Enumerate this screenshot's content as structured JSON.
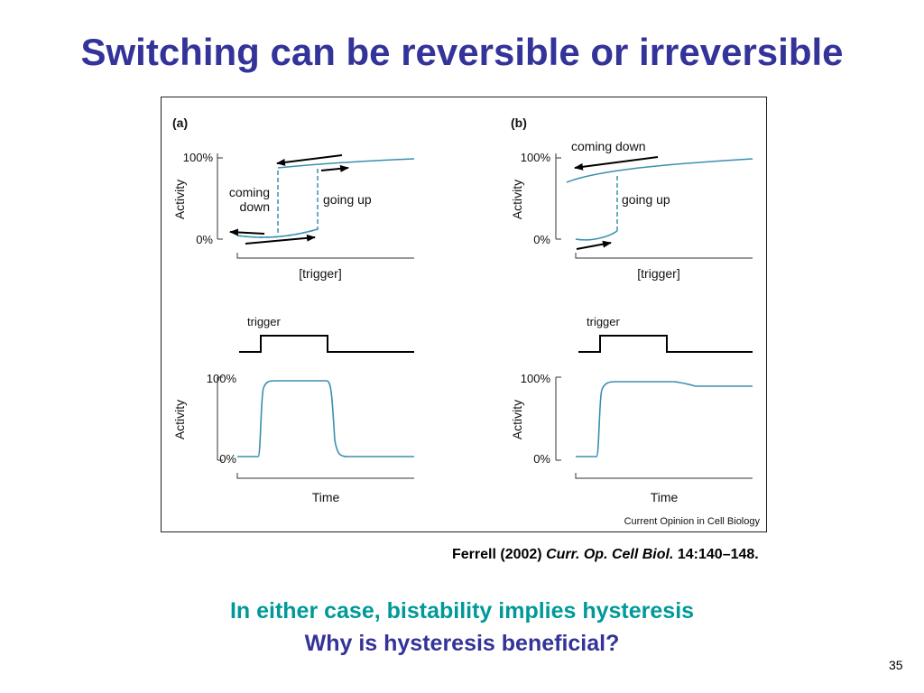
{
  "slide": {
    "title": "Switching can be reversible or irreversible",
    "number": "35",
    "colors": {
      "title": "#333399",
      "highlight": "#009999",
      "curve": "#3a8fb0",
      "arrow": "#000000"
    }
  },
  "figure": {
    "panel_a": {
      "label": "(a)",
      "hysteresis": {
        "y_top": "100%",
        "y_bottom": "0%",
        "ylabel": "Activity",
        "xlabel": "[trigger]",
        "coming_down_line1": "coming",
        "coming_down_line2": "down",
        "going_up": "going up"
      },
      "time_course": {
        "trigger_label": "trigger",
        "y_top": "100%",
        "y_bottom": "0%",
        "ylabel": "Activity",
        "xlabel": "Time"
      }
    },
    "panel_b": {
      "label": "(b)",
      "hysteresis": {
        "y_top": "100%",
        "y_bottom": "0%",
        "ylabel": "Activity",
        "xlabel": "[trigger]",
        "coming_down": "coming down",
        "going_up": "going up"
      },
      "time_course": {
        "trigger_label": "trigger",
        "y_top": "100%",
        "y_bottom": "0%",
        "ylabel": "Activity",
        "xlabel": "Time"
      }
    },
    "credit": "Current Opinion in Cell Biology"
  },
  "citation": {
    "authors": "Ferrell (2002)",
    "journal": "Curr. Op. Cell Biol.",
    "volume_pages": "14:140–148."
  },
  "messages": {
    "line1": "In either case, bistability implies hysteresis",
    "line2": "Why is hysteresis beneficial?"
  }
}
